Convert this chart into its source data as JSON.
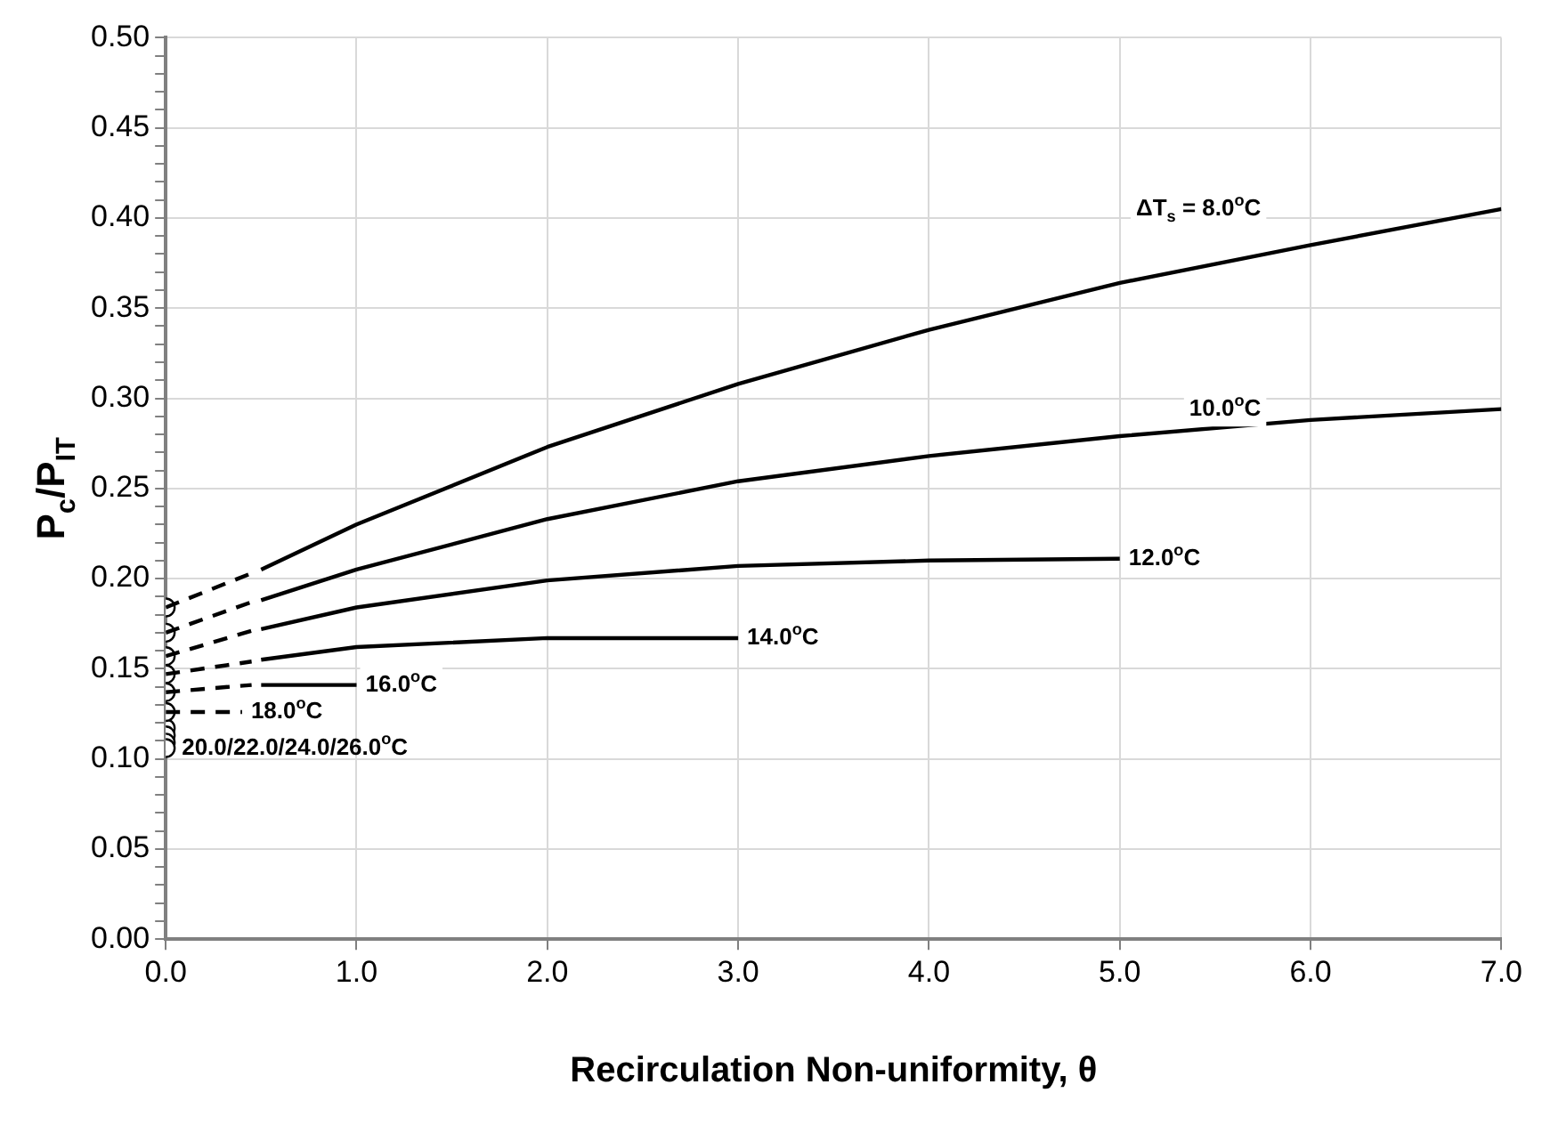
{
  "chart_data": {
    "type": "line",
    "xlabel": "Recirculation Non-uniformity, θ",
    "ylabel": "P$_{c}$/P$_{IT}$",
    "xlim": [
      0,
      7
    ],
    "ylim": [
      0,
      0.5
    ],
    "xticks": [
      {
        "value": 0,
        "label": "0.0"
      },
      {
        "value": 1,
        "label": "1.0"
      },
      {
        "value": 2,
        "label": "2.0"
      },
      {
        "value": 3,
        "label": "3.0"
      },
      {
        "value": 4,
        "label": "4.0"
      },
      {
        "value": 5,
        "label": "5.0"
      },
      {
        "value": 6,
        "label": "6.0"
      },
      {
        "value": 7,
        "label": "7.0"
      }
    ],
    "yticks": [
      {
        "value": 0,
        "label": "0.00"
      },
      {
        "value": 0.01,
        "label": null
      },
      {
        "value": 0.02,
        "label": null
      },
      {
        "value": 0.03,
        "label": null
      },
      {
        "value": 0.04,
        "label": null
      },
      {
        "value": 0.05,
        "label": "0.05"
      },
      {
        "value": 0.06,
        "label": null
      },
      {
        "value": 0.07,
        "label": null
      },
      {
        "value": 0.08,
        "label": null
      },
      {
        "value": 0.09,
        "label": null
      },
      {
        "value": 0.1,
        "label": "0.10"
      },
      {
        "value": 0.11,
        "label": null
      },
      {
        "value": 0.12,
        "label": null
      },
      {
        "value": 0.13,
        "label": null
      },
      {
        "value": 0.14,
        "label": null
      },
      {
        "value": 0.15,
        "label": "0.15"
      },
      {
        "value": 0.16,
        "label": null
      },
      {
        "value": 0.17,
        "label": null
      },
      {
        "value": 0.18,
        "label": null
      },
      {
        "value": 0.19,
        "label": null
      },
      {
        "value": 0.2,
        "label": "0.20"
      },
      {
        "value": 0.21,
        "label": null
      },
      {
        "value": 0.22,
        "label": null
      },
      {
        "value": 0.23,
        "label": null
      },
      {
        "value": 0.24,
        "label": null
      },
      {
        "value": 0.25,
        "label": "0.25"
      },
      {
        "value": 0.26,
        "label": null
      },
      {
        "value": 0.27,
        "label": null
      },
      {
        "value": 0.28,
        "label": null
      },
      {
        "value": 0.29,
        "label": null
      },
      {
        "value": 0.3,
        "label": "0.30"
      },
      {
        "value": 0.31,
        "label": null
      },
      {
        "value": 0.32,
        "label": null
      },
      {
        "value": 0.33,
        "label": null
      },
      {
        "value": 0.34,
        "label": null
      },
      {
        "value": 0.35,
        "label": "0.35"
      },
      {
        "value": 0.36,
        "label": null
      },
      {
        "value": 0.37,
        "label": null
      },
      {
        "value": 0.38,
        "label": null
      },
      {
        "value": 0.39,
        "label": null
      },
      {
        "value": 0.4,
        "label": "0.40"
      },
      {
        "value": 0.41,
        "label": null
      },
      {
        "value": 0.42,
        "label": null
      },
      {
        "value": 0.43,
        "label": null
      },
      {
        "value": 0.44,
        "label": null
      },
      {
        "value": 0.45,
        "label": "0.45"
      },
      {
        "value": 0.46,
        "label": null
      },
      {
        "value": 0.47,
        "label": null
      },
      {
        "value": 0.48,
        "label": null
      },
      {
        "value": 0.49,
        "label": null
      },
      {
        "value": 0.5,
        "label": "0.50"
      }
    ],
    "grid": true,
    "series": [
      {
        "name": "ΔT$_{s}$ = 8.0$^{o}$C",
        "color": "#000000",
        "line_style": "solid",
        "marker": "none",
        "x": [
          0.5,
          1,
          2,
          3,
          4,
          5,
          6,
          7
        ],
        "values": [
          0.205,
          0.23,
          0.273,
          0.308,
          0.338,
          0.364,
          0.385,
          0.405
        ]
      },
      {
        "name": "10.0$^{o}$C",
        "color": "#000000",
        "line_style": "solid",
        "marker": "none",
        "x": [
          0.5,
          1,
          2,
          3,
          4,
          5,
          6,
          7
        ],
        "values": [
          0.188,
          0.205,
          0.233,
          0.254,
          0.268,
          0.279,
          0.288,
          0.294
        ]
      },
      {
        "name": "12.0$^{o}$C",
        "color": "#000000",
        "line_style": "solid",
        "marker": "none",
        "x": [
          0.5,
          1,
          2,
          3,
          4,
          5
        ],
        "values": [
          0.172,
          0.184,
          0.199,
          0.207,
          0.21,
          0.211
        ]
      },
      {
        "name": "14.0$^{o}$C",
        "color": "#000000",
        "line_style": "solid",
        "marker": "none",
        "x": [
          0.5,
          1,
          2,
          3
        ],
        "values": [
          0.155,
          0.162,
          0.167,
          0.167
        ]
      },
      {
        "name": "16.0$^{o}$C",
        "color": "#000000",
        "line_style": "solid",
        "marker": "none",
        "x": [
          0.5,
          1
        ],
        "values": [
          0.141,
          0.141
        ]
      },
      {
        "color": "#000000",
        "line_style": "dashed",
        "marker": "none",
        "x": [
          0,
          0.45
        ],
        "values": [
          0.184,
          0.203
        ]
      },
      {
        "color": "#000000",
        "line_style": "dashed",
        "marker": "none",
        "x": [
          0,
          0.45
        ],
        "values": [
          0.17,
          0.187
        ]
      },
      {
        "color": "#000000",
        "line_style": "dashed",
        "marker": "none",
        "x": [
          0,
          0.45
        ],
        "values": [
          0.157,
          0.171
        ]
      },
      {
        "color": "#000000",
        "line_style": "dashed",
        "marker": "none",
        "x": [
          0,
          0.45
        ],
        "values": [
          0.147,
          0.154
        ]
      },
      {
        "color": "#000000",
        "line_style": "dashed",
        "marker": "none",
        "x": [
          0,
          0.45
        ],
        "values": [
          0.137,
          0.141
        ]
      },
      {
        "name": "18.0$^{o}$C",
        "color": "#000000",
        "line_style": "dashed",
        "marker": "none",
        "x": [
          0,
          0.4
        ],
        "values": [
          0.126,
          0.126
        ]
      },
      {
        "type": "scatter",
        "color": "#000000",
        "marker": "circle",
        "x": [
          0,
          0,
          0,
          0,
          0,
          0
        ],
        "values": [
          0.184,
          0.17,
          0.157,
          0.147,
          0.137,
          0.126
        ]
      },
      {
        "type": "scatter",
        "name": "20.0/22.0/24.0/26.0$^{o}$C",
        "color": "#000000",
        "marker": "circle",
        "x": [
          0,
          0,
          0,
          0
        ],
        "values": [
          0.117,
          0.113,
          0.109,
          0.106
        ]
      }
    ]
  }
}
